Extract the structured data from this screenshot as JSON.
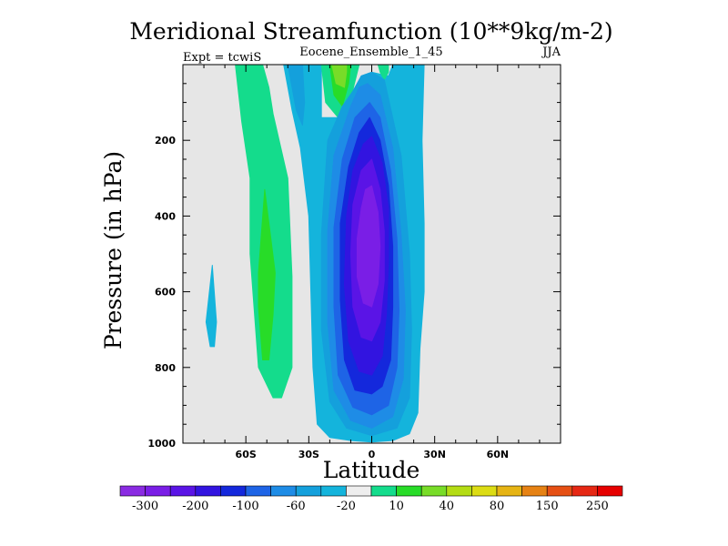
{
  "chart_data": {
    "type": "heatmap",
    "title": "Meridional Streamfunction (10**9kg/m-2)",
    "subtitle": "Eocene_Ensemble_1_45",
    "left_note": "Expt = tcwiS",
    "right_note": "JJA",
    "xlabel": "Latitude",
    "ylabel": "Pressure (in hPa)",
    "xlim": [
      -90,
      90
    ],
    "ylim": [
      1000,
      0
    ],
    "x_ticks": [
      {
        "value": -60,
        "label": "60S"
      },
      {
        "value": -30,
        "label": "30S"
      },
      {
        "value": 0,
        "label": "0"
      },
      {
        "value": 30,
        "label": "30N"
      },
      {
        "value": 60,
        "label": "60N"
      }
    ],
    "y_ticks": [
      {
        "value": 200,
        "label": "200"
      },
      {
        "value": 400,
        "label": "400"
      },
      {
        "value": 600,
        "label": "600"
      },
      {
        "value": 800,
        "label": "800"
      },
      {
        "value": 1000,
        "label": "1000"
      }
    ],
    "background_color": "#e6e6e6",
    "colorbar": {
      "boxes": [
        "#8a2be2",
        "#7a1ee6",
        "#5a14e6",
        "#3214e0",
        "#1428dc",
        "#1e64e6",
        "#1e8ce6",
        "#14a0dc",
        "#14b4dc",
        "#eeeeee",
        "#14dc8c",
        "#28dc28",
        "#78dc28",
        "#b4dc14",
        "#dcdc14",
        "#e6b414",
        "#e68214",
        "#e65014",
        "#e62814",
        "#e60000"
      ],
      "labels": [
        {
          "box_edge": 1,
          "text": "-300"
        },
        {
          "box_edge": 3,
          "text": "-200"
        },
        {
          "box_edge": 5,
          "text": "-100"
        },
        {
          "box_edge": 7,
          "text": "-60"
        },
        {
          "box_edge": 9,
          "text": "-20"
        },
        {
          "box_edge": 11,
          "text": "10"
        },
        {
          "box_edge": 13,
          "text": "40"
        },
        {
          "box_edge": 15,
          "text": "80"
        },
        {
          "box_edge": 17,
          "text": "150"
        },
        {
          "box_edge": 19,
          "text": "250"
        }
      ]
    },
    "contours": [
      {
        "level": 10,
        "color": "#14dc8c",
        "points": [
          [
            -65,
            0
          ],
          [
            -52,
            0
          ],
          [
            -49,
            60
          ],
          [
            -47,
            130
          ],
          [
            -40,
            300
          ],
          [
            -38,
            560
          ],
          [
            -38,
            800
          ],
          [
            -43,
            880
          ],
          [
            -47,
            880
          ],
          [
            -54,
            800
          ],
          [
            -58,
            500
          ],
          [
            -58,
            300
          ],
          [
            -62,
            150
          ]
        ]
      },
      {
        "level": 40,
        "color": "#28dc28",
        "points": [
          [
            -51,
            330
          ],
          [
            -46,
            550
          ],
          [
            -47,
            660
          ],
          [
            -49,
            780
          ],
          [
            -52,
            780
          ],
          [
            -54,
            640
          ],
          [
            -54,
            550
          ]
        ]
      },
      {
        "level": -20,
        "color": "#14b4dc",
        "points": [
          [
            -76,
            530
          ],
          [
            -74,
            680
          ],
          [
            -75,
            745
          ],
          [
            -77,
            745
          ],
          [
            -79,
            680
          ]
        ]
      },
      {
        "level": -20,
        "color": "#14b4dc",
        "points": [
          [
            -42,
            0
          ],
          [
            -38,
            120
          ],
          [
            -34,
            220
          ],
          [
            -30,
            400
          ],
          [
            -29,
            600
          ],
          [
            -28,
            800
          ],
          [
            -26,
            950
          ],
          [
            -20,
            985
          ],
          [
            -10,
            993
          ],
          [
            0,
            997
          ],
          [
            10,
            993
          ],
          [
            18,
            975
          ],
          [
            22,
            920
          ],
          [
            23,
            750
          ],
          [
            25,
            600
          ],
          [
            25,
            420
          ],
          [
            24,
            200
          ],
          [
            25,
            0
          ],
          [
            10,
            0
          ],
          [
            8,
            30
          ],
          [
            0,
            20
          ],
          [
            -5,
            30
          ],
          [
            -10,
            90
          ],
          [
            -16,
            140
          ],
          [
            -24,
            140
          ],
          [
            -24,
            0
          ]
        ]
      },
      {
        "level": -40,
        "color": "#14a0dc",
        "points": [
          [
            -40,
            0
          ],
          [
            -36,
            120
          ],
          [
            -33,
            160
          ],
          [
            -32,
            100
          ],
          [
            -33,
            0
          ]
        ]
      },
      {
        "level": 10,
        "color": "#14dc8c",
        "points": [
          [
            -24,
            0
          ],
          [
            -22,
            100
          ],
          [
            -16,
            140
          ],
          [
            -10,
            90
          ],
          [
            -6,
            0
          ]
        ]
      },
      {
        "level": 40,
        "color": "#28dc28",
        "points": [
          [
            -20,
            0
          ],
          [
            -18,
            80
          ],
          [
            -14,
            110
          ],
          [
            -11,
            50
          ],
          [
            -10,
            0
          ]
        ]
      },
      {
        "level": 80,
        "color": "#78dc28",
        "points": [
          [
            -19,
            0
          ],
          [
            -17,
            50
          ],
          [
            -13,
            60
          ],
          [
            -12,
            20
          ],
          [
            -12,
            0
          ]
        ]
      },
      {
        "level": 10,
        "color": "#14dc8c",
        "points": [
          [
            3,
            0
          ],
          [
            4,
            20
          ],
          [
            6,
            40
          ],
          [
            8,
            20
          ],
          [
            8,
            0
          ]
        ]
      },
      {
        "level": -40,
        "color": "#14a0dc",
        "points": [
          [
            -5,
            30
          ],
          [
            0,
            20
          ],
          [
            6,
            40
          ],
          [
            14,
            240
          ],
          [
            18,
            500
          ],
          [
            19,
            700
          ],
          [
            18,
            880
          ],
          [
            12,
            960
          ],
          [
            0,
            980
          ],
          [
            -12,
            960
          ],
          [
            -20,
            890
          ],
          [
            -24,
            700
          ],
          [
            -24,
            450
          ],
          [
            -21,
            200
          ],
          [
            -14,
            110
          ],
          [
            -9,
            70
          ]
        ]
      },
      {
        "level": -60,
        "color": "#1e8ce6",
        "points": [
          [
            -2,
            50
          ],
          [
            4,
            80
          ],
          [
            10,
            220
          ],
          [
            14,
            450
          ],
          [
            16,
            650
          ],
          [
            15,
            830
          ],
          [
            10,
            930
          ],
          [
            0,
            960
          ],
          [
            -10,
            940
          ],
          [
            -18,
            860
          ],
          [
            -21,
            680
          ],
          [
            -21,
            440
          ],
          [
            -18,
            240
          ],
          [
            -10,
            110
          ],
          [
            -6,
            60
          ]
        ]
      },
      {
        "level": -80,
        "color": "#1e64e6",
        "points": [
          [
            -1,
            100
          ],
          [
            4,
            140
          ],
          [
            9,
            280
          ],
          [
            12,
            460
          ],
          [
            13,
            650
          ],
          [
            12,
            800
          ],
          [
            8,
            900
          ],
          [
            0,
            925
          ],
          [
            -9,
            905
          ],
          [
            -16,
            820
          ],
          [
            -18,
            640
          ],
          [
            -18,
            430
          ],
          [
            -14,
            250
          ],
          [
            -8,
            140
          ]
        ]
      },
      {
        "level": -100,
        "color": "#1428dc",
        "points": [
          [
            -1,
            140
          ],
          [
            4,
            200
          ],
          [
            8,
            320
          ],
          [
            10,
            480
          ],
          [
            10,
            640
          ],
          [
            9,
            780
          ],
          [
            5,
            850
          ],
          [
            0,
            870
          ],
          [
            -8,
            860
          ],
          [
            -13,
            780
          ],
          [
            -15,
            620
          ],
          [
            -15,
            420
          ],
          [
            -11,
            270
          ],
          [
            -6,
            180
          ]
        ]
      },
      {
        "level": -150,
        "color": "#3214e0",
        "points": [
          [
            0,
            190
          ],
          [
            5,
            260
          ],
          [
            8,
            380
          ],
          [
            8,
            520
          ],
          [
            7,
            660
          ],
          [
            5,
            770
          ],
          [
            0,
            820
          ],
          [
            -6,
            810
          ],
          [
            -11,
            730
          ],
          [
            -13,
            580
          ],
          [
            -12,
            400
          ],
          [
            -9,
            280
          ],
          [
            -4,
            210
          ]
        ]
      },
      {
        "level": -200,
        "color": "#5a14e6",
        "points": [
          [
            0,
            250
          ],
          [
            4,
            330
          ],
          [
            6,
            440
          ],
          [
            6,
            570
          ],
          [
            4,
            680
          ],
          [
            0,
            730
          ],
          [
            -5,
            720
          ],
          [
            -9,
            640
          ],
          [
            -10,
            500
          ],
          [
            -9,
            370
          ],
          [
            -5,
            280
          ]
        ]
      },
      {
        "level": -250,
        "color": "#7a1ee6",
        "points": [
          [
            0,
            320
          ],
          [
            3,
            390
          ],
          [
            4,
            480
          ],
          [
            3,
            580
          ],
          [
            0,
            640
          ],
          [
            -4,
            630
          ],
          [
            -7,
            560
          ],
          [
            -7,
            460
          ],
          [
            -5,
            380
          ],
          [
            -3,
            330
          ]
        ]
      }
    ]
  }
}
